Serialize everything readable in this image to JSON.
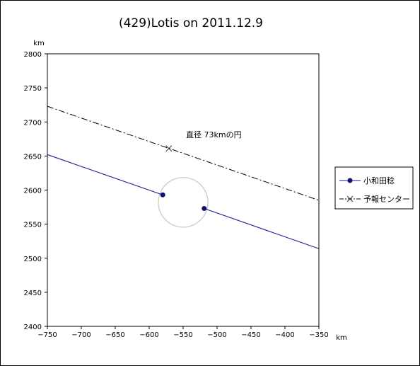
{
  "chart_data": {
    "type": "scatter",
    "title": "(429)Lotis on 2011.12.9",
    "xlabel": "km",
    "ylabel": "km",
    "xlim": [
      -750,
      -350
    ],
    "ylim": [
      2400,
      2800
    ],
    "xticks": [
      "−750",
      "−700",
      "−650",
      "−600",
      "−550",
      "−500",
      "−450",
      "−400",
      "−350"
    ],
    "yticks": [
      "2400",
      "2450",
      "2500",
      "2550",
      "2600",
      "2650",
      "2700",
      "2750",
      "2800"
    ],
    "grid": false,
    "legend_position": "right",
    "annotation": "直径 73kmの円",
    "series": [
      {
        "name": "小和田稔",
        "style": "solid",
        "color": "#1f1f8f",
        "marker": "dot",
        "line_in": {
          "x": [
            -750,
            -580
          ],
          "y": [
            2652,
            2593
          ]
        },
        "line_out": {
          "x": [
            -519,
            -350
          ],
          "y": [
            2573,
            2514
          ]
        },
        "points": [
          {
            "x": -580,
            "y": 2593
          },
          {
            "x": -519,
            "y": 2573
          }
        ]
      },
      {
        "name": "予報センター",
        "style": "dash-dot",
        "color": "#000000",
        "marker": "x",
        "line": {
          "x": [
            -750,
            -350
          ],
          "y": [
            2723,
            2585
          ]
        },
        "points": [
          {
            "x": -571,
            "y": 2661
          }
        ]
      }
    ],
    "circle": {
      "cx": -550,
      "cy": 2582,
      "diameter_km": 73,
      "color": "#c8c8c8"
    }
  }
}
